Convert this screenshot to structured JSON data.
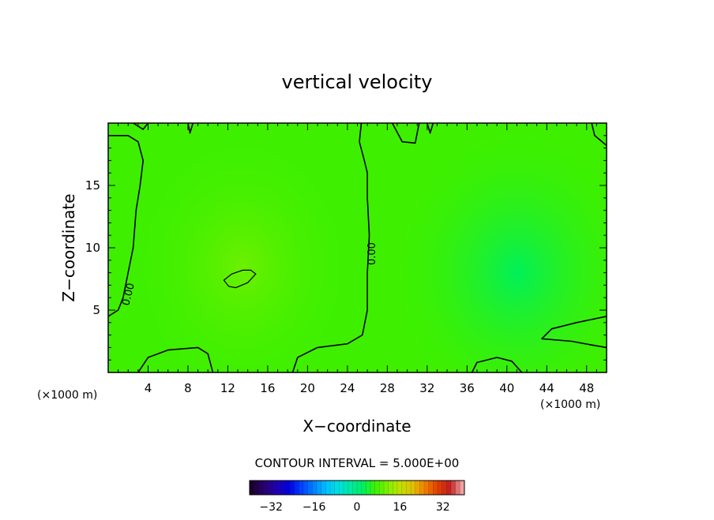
{
  "chart_data": {
    "type": "contour",
    "title": "vertical velocity",
    "xlabel": "X−coordinate",
    "ylabel": "Z−coordinate",
    "x_unit": "(×1000 m)",
    "y_unit": "(×1000 m)",
    "xlim": [
      0,
      50
    ],
    "ylim": [
      0,
      20
    ],
    "x_ticks": [
      4,
      8,
      12,
      16,
      20,
      24,
      28,
      32,
      36,
      40,
      44,
      48
    ],
    "y_ticks": [
      5,
      10,
      15
    ],
    "contour_interval_text": "CONTOUR INTERVAL = 5.000E+00",
    "contour_labels": [
      "0.00",
      "0.00"
    ],
    "colorbar": {
      "range": [
        -40,
        40
      ],
      "ticks": [
        -32,
        -16,
        0,
        16,
        32
      ],
      "colors": [
        "#1a0030",
        "#2a0070",
        "#2000b0",
        "#0000e0",
        "#0040ff",
        "#0080ff",
        "#00c0ff",
        "#00e0e0",
        "#00e8a0",
        "#00f060",
        "#40f000",
        "#80f000",
        "#c0e000",
        "#e0c000",
        "#f08000",
        "#e04000",
        "#c02020",
        "#f0a0a0"
      ]
    },
    "field": {
      "background": "#3ef000",
      "positive_center": {
        "x": 13.5,
        "z": 8.5,
        "color": "#66ef00"
      },
      "negative_center": {
        "x": 41,
        "z": 8,
        "color": "#00f060"
      }
    },
    "zero_contours": [
      [
        [
          0,
          4.5
        ],
        [
          1,
          5
        ],
        [
          1.5,
          6
        ],
        [
          2,
          8
        ],
        [
          2.5,
          10
        ],
        [
          2.8,
          13
        ],
        [
          3.2,
          15
        ],
        [
          3.5,
          17
        ],
        [
          3,
          18.5
        ],
        [
          2,
          19
        ],
        [
          0,
          19
        ]
      ],
      [
        [
          3,
          0
        ],
        [
          4,
          1.2
        ],
        [
          6,
          1.8
        ],
        [
          9,
          2
        ],
        [
          10,
          1.5
        ],
        [
          10.5,
          0
        ]
      ],
      [
        [
          18.5,
          0
        ],
        [
          19,
          1.2
        ],
        [
          21,
          2
        ],
        [
          24,
          2.3
        ],
        [
          25.5,
          3
        ],
        [
          26,
          5
        ],
        [
          26,
          8
        ],
        [
          26.2,
          11
        ],
        [
          26,
          14
        ],
        [
          26,
          16
        ],
        [
          25.7,
          17
        ],
        [
          25.2,
          18.5
        ],
        [
          25.4,
          20
        ]
      ],
      [
        [
          8,
          20
        ],
        [
          8.2,
          19.2
        ],
        [
          8.5,
          20
        ]
      ],
      [
        [
          2.5,
          20
        ],
        [
          3.5,
          19.5
        ],
        [
          4,
          20
        ]
      ],
      [
        [
          28.5,
          20
        ],
        [
          29.5,
          18.5
        ],
        [
          30.8,
          18.4
        ],
        [
          31.2,
          20
        ]
      ],
      [
        [
          32,
          20
        ],
        [
          32.3,
          19.2
        ],
        [
          32.6,
          20
        ]
      ],
      [
        [
          36.5,
          0
        ],
        [
          37,
          0.8
        ],
        [
          39,
          1.2
        ],
        [
          40.5,
          0.9
        ],
        [
          41.5,
          0
        ]
      ],
      [
        [
          50,
          4.5
        ],
        [
          47,
          4
        ],
        [
          44.5,
          3.5
        ],
        [
          43.5,
          2.7
        ],
        [
          46.5,
          2.5
        ],
        [
          48.5,
          2.2
        ],
        [
          50,
          2
        ]
      ],
      [
        [
          48.5,
          20
        ],
        [
          48.8,
          19
        ],
        [
          50,
          18.2
        ]
      ]
    ],
    "positive_contours": [
      [
        [
          11.6,
          7.4
        ],
        [
          12.4,
          7.9
        ],
        [
          13.5,
          8.2
        ],
        [
          14.3,
          8.2
        ],
        [
          14.8,
          7.9
        ],
        [
          14,
          7.2
        ],
        [
          12.8,
          6.8
        ],
        [
          12.1,
          6.9
        ],
        [
          11.6,
          7.4
        ]
      ]
    ]
  }
}
